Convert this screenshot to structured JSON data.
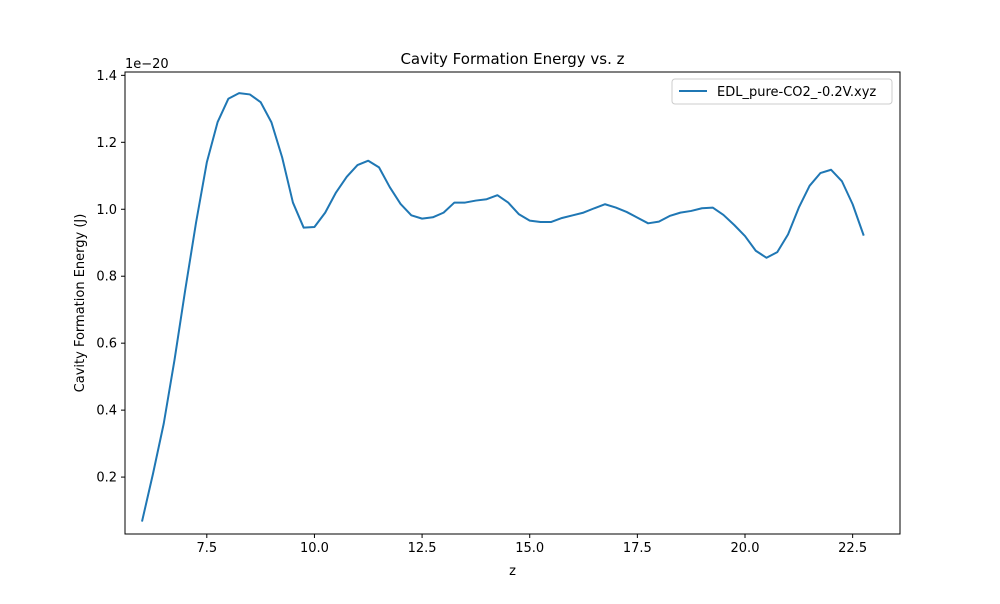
{
  "chart_data": {
    "type": "line",
    "title": "Cavity Formation Energy vs. z",
    "xlabel": "z",
    "ylabel": "Cavity Formation Energy (J)",
    "y_offset_label": "1e−20",
    "xlim": [
      5.6,
      23.6
    ],
    "ylim": [
      0.03,
      1.41
    ],
    "xticks": [
      7.5,
      10.0,
      12.5,
      15.0,
      17.5,
      20.0,
      22.5
    ],
    "xtick_labels": [
      "7.5",
      "10.0",
      "12.5",
      "15.0",
      "17.5",
      "20.0",
      "22.5"
    ],
    "yticks": [
      0.2,
      0.4,
      0.6,
      0.8,
      1.0,
      1.2,
      1.4
    ],
    "ytick_labels": [
      "0.2",
      "0.4",
      "0.6",
      "0.8",
      "1.0",
      "1.2",
      "1.4"
    ],
    "grid": false,
    "legend_position": "top-right",
    "series_color": "#1f77b4",
    "series": [
      {
        "name": "EDL_pure-CO2_-0.2V.xyz",
        "x": [
          6.0,
          6.25,
          6.5,
          6.75,
          7.0,
          7.25,
          7.5,
          7.75,
          8.0,
          8.25,
          8.5,
          8.75,
          9.0,
          9.25,
          9.5,
          9.75,
          10.0,
          10.25,
          10.5,
          10.75,
          11.0,
          11.25,
          11.5,
          11.75,
          12.0,
          12.25,
          12.5,
          12.75,
          13.0,
          13.25,
          13.5,
          13.75,
          14.0,
          14.25,
          14.5,
          14.75,
          15.0,
          15.25,
          15.5,
          15.75,
          16.0,
          16.25,
          16.5,
          16.75,
          17.0,
          17.25,
          17.5,
          17.75,
          18.0,
          18.25,
          18.5,
          18.75,
          19.0,
          19.25,
          19.5,
          19.75,
          20.0,
          20.25,
          20.5,
          20.75,
          21.0,
          21.25,
          21.5,
          21.75,
          22.0,
          22.25,
          22.5,
          22.75
        ],
        "values": [
          0.07,
          0.21,
          0.36,
          0.55,
          0.76,
          0.96,
          1.14,
          1.26,
          1.33,
          1.347,
          1.343,
          1.32,
          1.26,
          1.155,
          1.02,
          0.945,
          0.947,
          0.99,
          1.05,
          1.097,
          1.132,
          1.145,
          1.125,
          1.066,
          1.016,
          0.982,
          0.972,
          0.976,
          0.99,
          1.02,
          1.02,
          1.026,
          1.03,
          1.042,
          1.02,
          0.985,
          0.966,
          0.962,
          0.962,
          0.974,
          0.982,
          0.99,
          1.003,
          1.015,
          1.005,
          0.992,
          0.975,
          0.958,
          0.963,
          0.98,
          0.99,
          0.995,
          1.003,
          1.005,
          0.983,
          0.953,
          0.92,
          0.876,
          0.855,
          0.872,
          0.925,
          1.005,
          1.07,
          1.108,
          1.118,
          1.084,
          1.015,
          0.924
        ]
      }
    ]
  }
}
